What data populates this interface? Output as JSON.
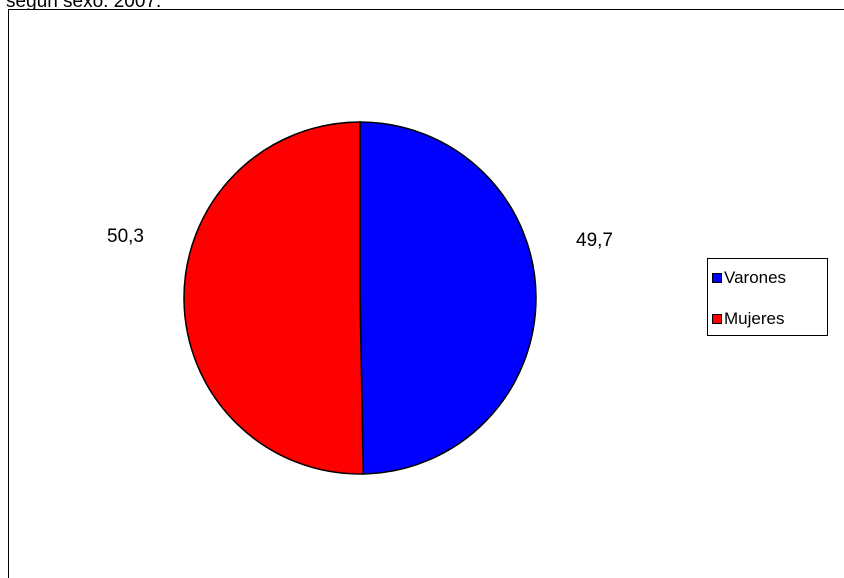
{
  "caption": "según sexo. 2007.",
  "colors": {
    "varones": "#0000ff",
    "mujeres": "#ff0000",
    "outline": "#000000",
    "background": "#ffffff"
  },
  "chart_data": {
    "type": "pie",
    "title": "",
    "categories": [
      "Varones",
      "Mujeres"
    ],
    "values": [
      49.7,
      50.3
    ],
    "data_labels": [
      "49,7",
      "50,3"
    ],
    "colors": [
      "#0000ff",
      "#ff0000"
    ],
    "start": "12 o'clock, clockwise",
    "legend": {
      "placement": "right",
      "entries": [
        "Varones",
        "Mujeres"
      ]
    }
  }
}
